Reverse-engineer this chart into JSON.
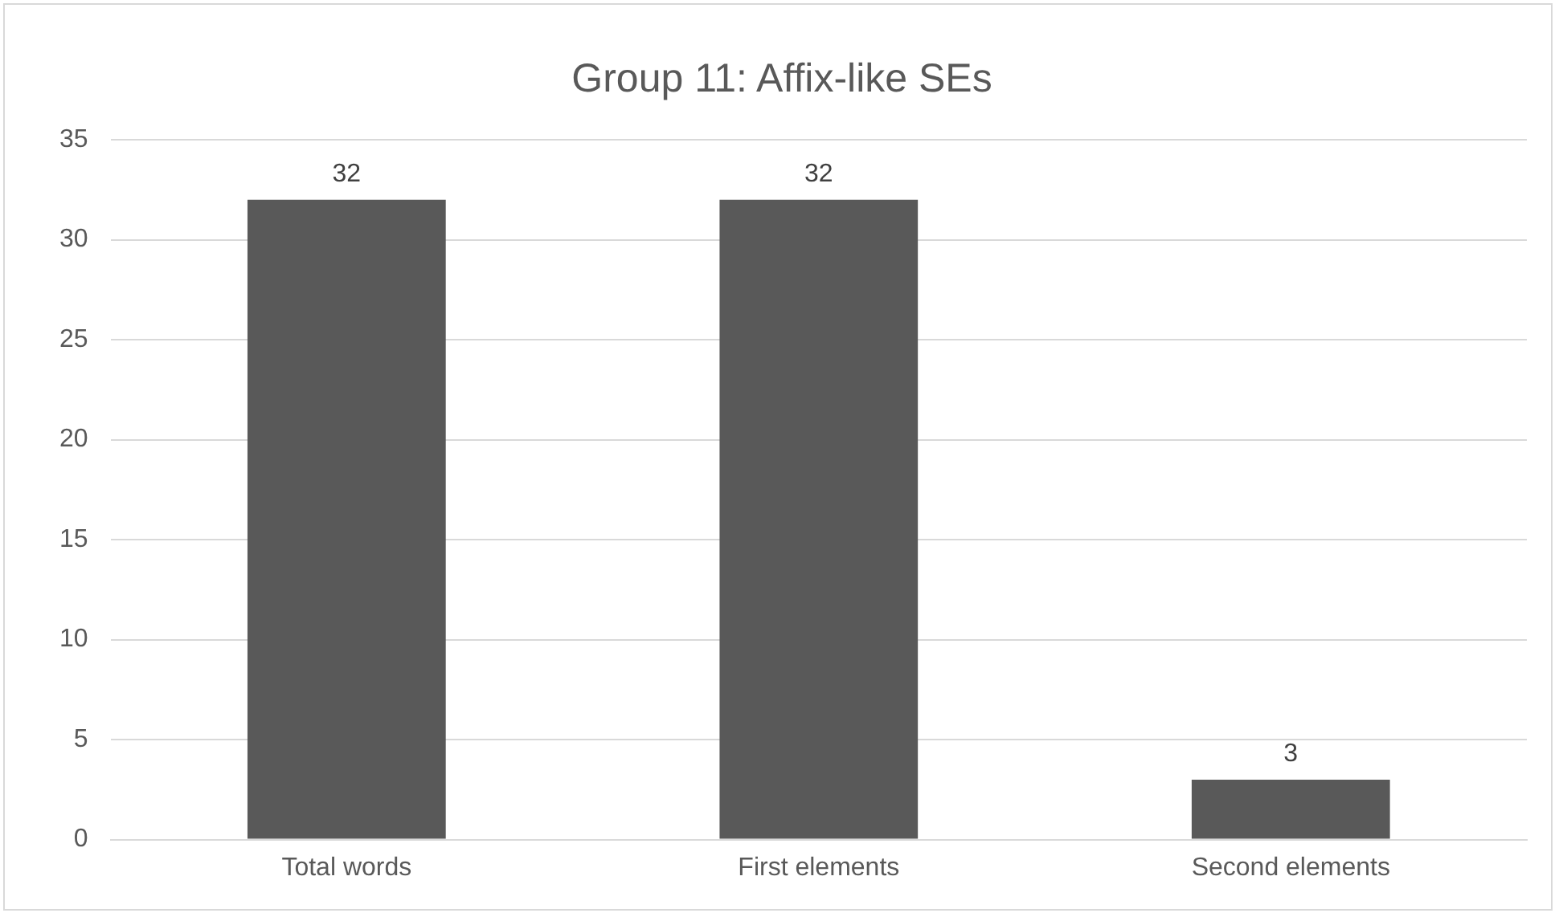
{
  "chart_data": {
    "type": "bar",
    "title": "Group 11: Affix-like SEs",
    "categories": [
      "Total words",
      "First elements",
      "Second elements"
    ],
    "values": [
      32,
      32,
      3
    ],
    "color": "#595959",
    "ylim": [
      0,
      35
    ],
    "yticks": [
      0,
      5,
      10,
      15,
      20,
      25,
      30,
      35
    ],
    "grid": "y",
    "data_labels": true
  }
}
